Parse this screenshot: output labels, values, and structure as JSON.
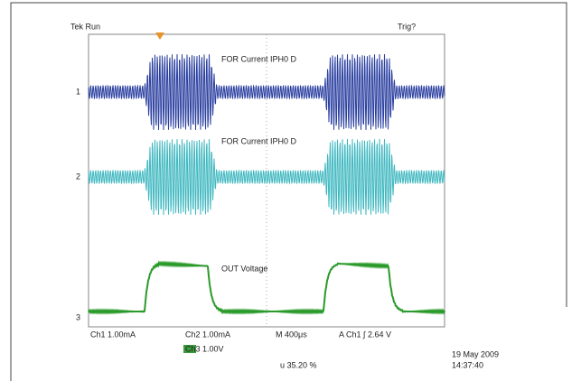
{
  "status": {
    "run_state": "Tek Run",
    "trigger_state": "Trig?"
  },
  "traces": [
    {
      "marker": "1",
      "label": "FOR Current IPH0 D"
    },
    {
      "marker": "2",
      "label": "FOR Current IPH0 D"
    },
    {
      "marker": "3",
      "label": "OUT Voltage"
    }
  ],
  "readout": {
    "ch1_scale": "Ch1 1.00mA",
    "ch2_scale": "Ch2 1.00mA",
    "ch3_scale": "Ch3 1.00V",
    "timebase": "M 400μs",
    "trigger": "A Ch1 ∫ 2.64 V",
    "measurement": "u 35.20 %",
    "date": "19 May 2009",
    "time": "14:37:40"
  }
}
